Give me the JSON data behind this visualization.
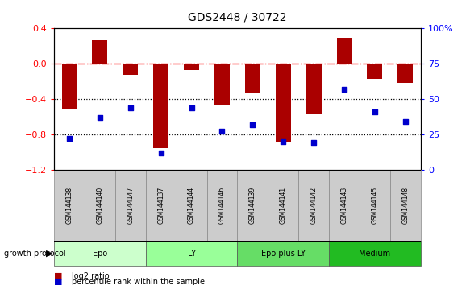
{
  "title": "GDS2448 / 30722",
  "samples": [
    "GSM144138",
    "GSM144140",
    "GSM144147",
    "GSM144137",
    "GSM144144",
    "GSM144146",
    "GSM144139",
    "GSM144141",
    "GSM144142",
    "GSM144143",
    "GSM144145",
    "GSM144148"
  ],
  "log2_ratio": [
    -0.52,
    0.27,
    -0.13,
    -0.96,
    -0.07,
    -0.47,
    -0.33,
    -0.88,
    -0.56,
    0.29,
    -0.17,
    -0.22
  ],
  "percentile_rank": [
    22,
    37,
    44,
    12,
    44,
    27,
    32,
    20,
    19,
    57,
    41,
    34
  ],
  "ylim_left": [
    -1.2,
    0.4
  ],
  "ylim_right": [
    0,
    100
  ],
  "right_ticks": [
    0,
    25,
    50,
    75,
    100
  ],
  "right_tick_labels": [
    "0",
    "25",
    "50",
    "75",
    "100%"
  ],
  "left_ticks": [
    -1.2,
    -0.8,
    -0.4,
    0.0,
    0.4
  ],
  "hlines_dotted": [
    -0.4,
    -0.8
  ],
  "hline_dashdot": 0.0,
  "bar_color": "#AA0000",
  "dot_color": "#0000CC",
  "bar_width": 0.5,
  "groups": [
    {
      "label": "Epo",
      "start": 0,
      "end": 3,
      "color": "#CCFFCC"
    },
    {
      "label": "LY",
      "start": 3,
      "end": 6,
      "color": "#99FF99"
    },
    {
      "label": "Epo plus LY",
      "start": 6,
      "end": 9,
      "color": "#66DD66"
    },
    {
      "label": "Medium",
      "start": 9,
      "end": 12,
      "color": "#22BB22"
    }
  ],
  "growth_protocol_label": "growth protocol",
  "legend_items": [
    {
      "color": "#AA0000",
      "label": "log2 ratio"
    },
    {
      "color": "#0000CC",
      "label": "percentile rank within the sample"
    }
  ],
  "fig_width": 5.83,
  "fig_height": 3.54
}
